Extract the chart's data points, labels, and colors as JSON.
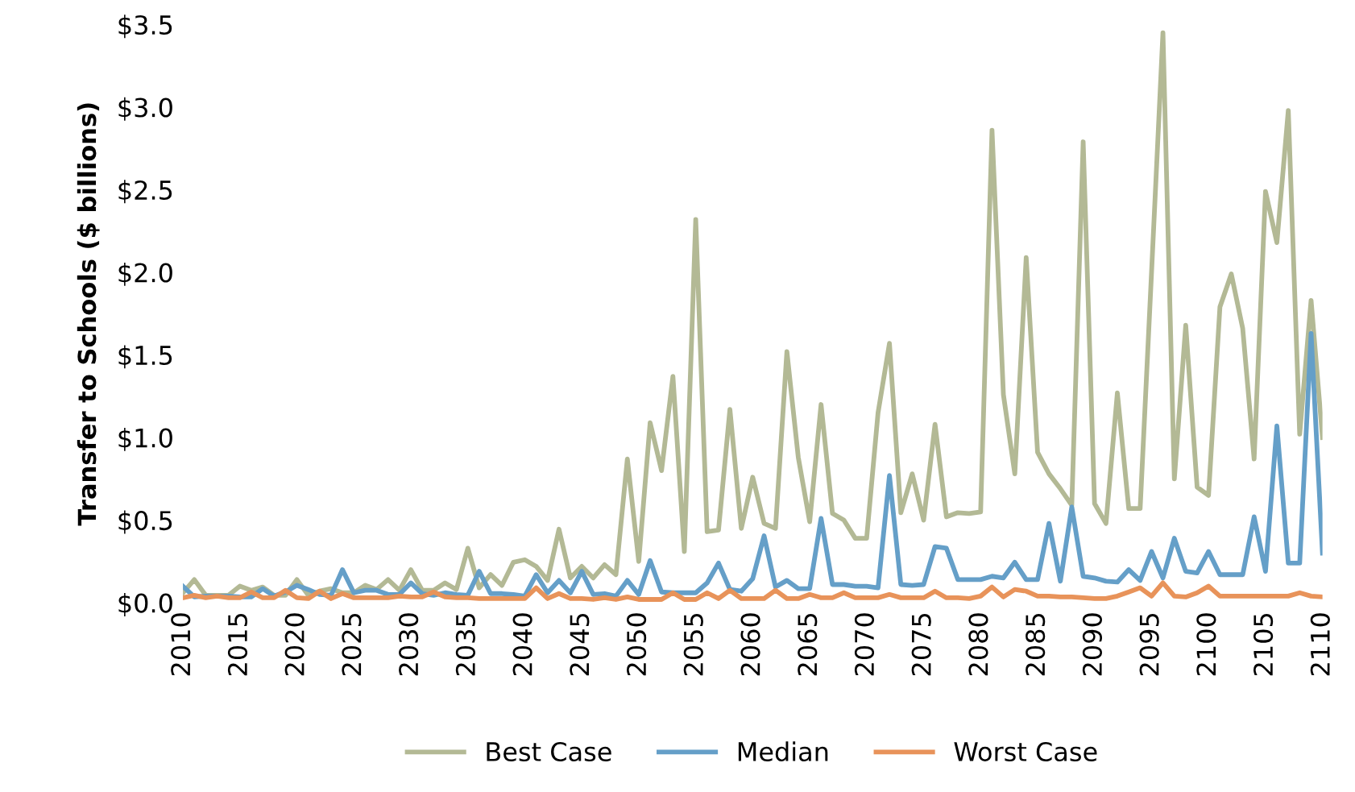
{
  "chart_data": {
    "type": "line",
    "ylabel": "Transfer to Schools ($ billions)",
    "x": [
      2010,
      2011,
      2012,
      2013,
      2014,
      2015,
      2016,
      2017,
      2018,
      2019,
      2020,
      2021,
      2022,
      2023,
      2024,
      2025,
      2026,
      2027,
      2028,
      2029,
      2030,
      2031,
      2032,
      2033,
      2034,
      2035,
      2036,
      2037,
      2038,
      2039,
      2040,
      2041,
      2042,
      2043,
      2044,
      2045,
      2046,
      2047,
      2048,
      2049,
      2050,
      2051,
      2052,
      2053,
      2054,
      2055,
      2056,
      2057,
      2058,
      2059,
      2060,
      2061,
      2062,
      2063,
      2064,
      2065,
      2066,
      2067,
      2068,
      2069,
      2070,
      2071,
      2072,
      2073,
      2074,
      2075,
      2076,
      2077,
      2078,
      2079,
      2080,
      2081,
      2082,
      2083,
      2084,
      2085,
      2086,
      2087,
      2088,
      2089,
      2090,
      2091,
      2092,
      2093,
      2094,
      2095,
      2096,
      2097,
      2098,
      2099,
      2100,
      2101,
      2102,
      2103,
      2104,
      2105,
      2106,
      2107,
      2108,
      2109,
      2110
    ],
    "series": [
      {
        "name": "Best Case",
        "color": "#b3b995",
        "values": [
          0.06,
          0.14,
          0.045,
          0.045,
          0.045,
          0.1,
          0.075,
          0.095,
          0.045,
          0.045,
          0.14,
          0.045,
          0.07,
          0.085,
          0.06,
          0.06,
          0.105,
          0.08,
          0.14,
          0.075,
          0.2,
          0.075,
          0.075,
          0.12,
          0.08,
          0.33,
          0.09,
          0.17,
          0.105,
          0.245,
          0.26,
          0.22,
          0.135,
          0.445,
          0.15,
          0.22,
          0.15,
          0.23,
          0.17,
          0.87,
          0.25,
          1.09,
          0.8,
          1.37,
          0.31,
          2.32,
          0.43,
          0.44,
          1.17,
          0.45,
          0.76,
          0.48,
          0.45,
          1.52,
          0.88,
          0.49,
          1.2,
          0.54,
          0.5,
          0.39,
          0.39,
          1.15,
          1.57,
          0.545,
          0.78,
          0.5,
          1.08,
          0.52,
          0.545,
          0.54,
          0.55,
          2.86,
          1.26,
          0.78,
          2.09,
          0.91,
          0.78,
          0.69,
          0.59,
          2.79,
          0.6,
          0.48,
          1.27,
          0.57,
          0.57,
          2.0,
          3.45,
          0.75,
          1.68,
          0.7,
          0.65,
          1.79,
          1.99,
          1.66,
          0.87,
          2.49,
          2.18,
          2.98,
          1.02,
          1.83,
          1.0
        ]
      },
      {
        "name": "Median",
        "color": "#659fc8",
        "values": [
          0.1,
          0.035,
          0.04,
          0.04,
          0.04,
          0.035,
          0.035,
          0.085,
          0.04,
          0.065,
          0.105,
          0.08,
          0.05,
          0.045,
          0.2,
          0.06,
          0.075,
          0.075,
          0.05,
          0.05,
          0.12,
          0.055,
          0.045,
          0.06,
          0.05,
          0.045,
          0.19,
          0.055,
          0.055,
          0.05,
          0.04,
          0.17,
          0.06,
          0.135,
          0.06,
          0.19,
          0.05,
          0.055,
          0.04,
          0.135,
          0.05,
          0.255,
          0.065,
          0.06,
          0.06,
          0.06,
          0.12,
          0.24,
          0.08,
          0.07,
          0.145,
          0.405,
          0.095,
          0.135,
          0.085,
          0.085,
          0.51,
          0.11,
          0.11,
          0.1,
          0.1,
          0.09,
          0.77,
          0.11,
          0.105,
          0.11,
          0.34,
          0.33,
          0.14,
          0.14,
          0.14,
          0.16,
          0.15,
          0.245,
          0.14,
          0.14,
          0.48,
          0.13,
          0.58,
          0.16,
          0.15,
          0.13,
          0.125,
          0.2,
          0.135,
          0.31,
          0.15,
          0.39,
          0.19,
          0.18,
          0.31,
          0.17,
          0.17,
          0.17,
          0.52,
          0.19,
          1.07,
          0.24,
          0.24,
          1.63,
          0.3
        ]
      },
      {
        "name": "Worst Case",
        "color": "#e8935a",
        "values": [
          0.03,
          0.045,
          0.03,
          0.04,
          0.03,
          0.03,
          0.065,
          0.03,
          0.03,
          0.075,
          0.03,
          0.025,
          0.07,
          0.025,
          0.055,
          0.03,
          0.03,
          0.03,
          0.03,
          0.04,
          0.035,
          0.035,
          0.065,
          0.035,
          0.03,
          0.03,
          0.025,
          0.025,
          0.025,
          0.025,
          0.025,
          0.09,
          0.025,
          0.055,
          0.025,
          0.025,
          0.02,
          0.03,
          0.02,
          0.035,
          0.02,
          0.02,
          0.02,
          0.06,
          0.02,
          0.02,
          0.06,
          0.025,
          0.075,
          0.025,
          0.025,
          0.025,
          0.075,
          0.025,
          0.025,
          0.05,
          0.03,
          0.03,
          0.06,
          0.03,
          0.03,
          0.03,
          0.05,
          0.03,
          0.03,
          0.03,
          0.07,
          0.03,
          0.03,
          0.025,
          0.04,
          0.095,
          0.035,
          0.08,
          0.07,
          0.04,
          0.04,
          0.035,
          0.035,
          0.03,
          0.025,
          0.025,
          0.04,
          0.065,
          0.09,
          0.04,
          0.12,
          0.04,
          0.035,
          0.06,
          0.1,
          0.04,
          0.04,
          0.04,
          0.04,
          0.04,
          0.04,
          0.04,
          0.06,
          0.04,
          0.035
        ]
      }
    ],
    "xlim": [
      2010,
      2110
    ],
    "xticks": [
      2010,
      2015,
      2020,
      2025,
      2030,
      2035,
      2040,
      2045,
      2050,
      2055,
      2060,
      2065,
      2070,
      2075,
      2080,
      2085,
      2090,
      2095,
      2100,
      2105,
      2110
    ],
    "ylim": [
      0,
      3.5
    ],
    "yticks": [
      {
        "value": 0,
        "label": "$0.0"
      },
      {
        "value": 0.5,
        "label": "$0.5"
      },
      {
        "value": 1,
        "label": "$1.0"
      },
      {
        "value": 1.5,
        "label": "$1.5"
      },
      {
        "value": 2,
        "label": "$2.0"
      },
      {
        "value": 2.5,
        "label": "$2.5"
      },
      {
        "value": 3,
        "label": "$3.0"
      },
      {
        "value": 3.5,
        "label": "$3.5"
      }
    ],
    "grid": false,
    "legend": "bottom",
    "marker": "none",
    "line_style": "solid"
  }
}
